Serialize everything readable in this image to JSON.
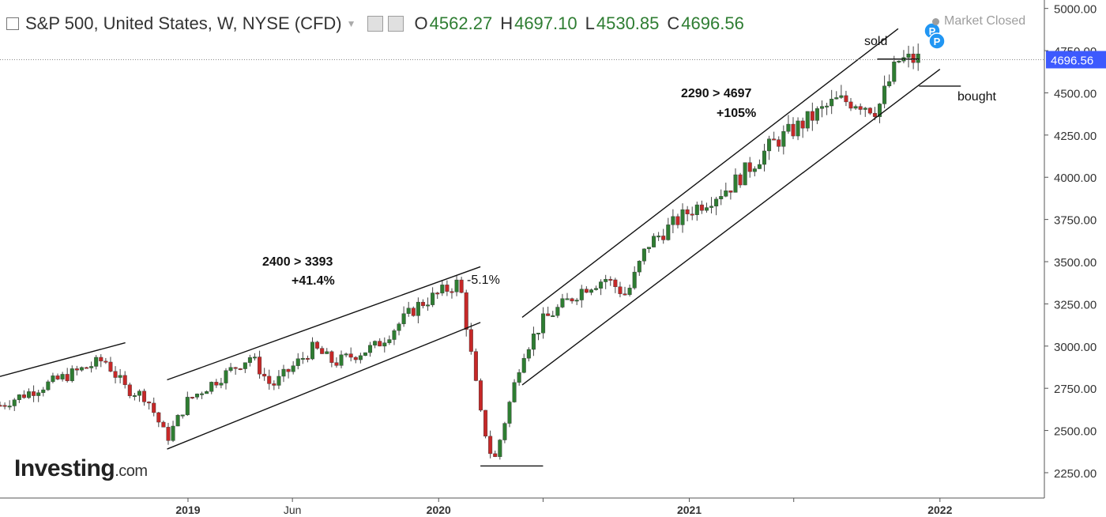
{
  "header": {
    "title": "S&P 500, United States, W, NYSE (CFD)",
    "open_label": "O",
    "open_value": "4562.27",
    "high_label": "H",
    "high_value": "4697.10",
    "low_label": "L",
    "low_value": "4530.85",
    "close_label": "C",
    "close_value": "4696.56",
    "status": "Market Closed"
  },
  "logo": {
    "main": "Investing",
    "suffix": ".com"
  },
  "colors": {
    "up": "#2e7d32",
    "down": "#c62828",
    "price_tag": "#3d5afe",
    "marker": "#2196f3"
  },
  "chart_data": {
    "type": "candlestick",
    "ylim": [
      2100,
      5050
    ],
    "y_ticks": [
      "2250.00",
      "2500.00",
      "2750.00",
      "3000.00",
      "3250.00",
      "3500.00",
      "3750.00",
      "4000.00",
      "4250.00",
      "4500.00",
      "4750.00",
      "5000.00"
    ],
    "x_range": [
      "2018-04",
      "2022-06"
    ],
    "x_ticks": [
      {
        "label": "2019",
        "date": "2019-01"
      },
      {
        "label": "Jun",
        "date": "2019-06"
      },
      {
        "label": "2020",
        "date": "2020-01"
      },
      {
        "label": "",
        "date": "2020-06"
      },
      {
        "label": "2021",
        "date": "2021-01"
      },
      {
        "label": "",
        "date": "2021-06"
      },
      {
        "label": "2022",
        "date": "2022-01"
      }
    ],
    "last_price": "4696.56",
    "anchors": [
      [
        "2018-04",
        2650
      ],
      [
        "2018-06",
        2760
      ],
      [
        "2018-09",
        2920
      ],
      [
        "2018-10",
        2750
      ],
      [
        "2018-11",
        2700
      ],
      [
        "2018-12",
        2450
      ],
      [
        "2019-01",
        2680
      ],
      [
        "2019-04",
        2940
      ],
      [
        "2019-05",
        2760
      ],
      [
        "2019-07",
        2990
      ],
      [
        "2019-08",
        2900
      ],
      [
        "2019-10",
        3000
      ],
      [
        "2019-12",
        3240
      ],
      [
        "2020-02",
        3380
      ],
      [
        "2020-03",
        2600
      ],
      [
        "2020-03-20",
        2300
      ],
      [
        "2020-05",
        2950
      ],
      [
        "2020-06",
        3150
      ],
      [
        "2020-08",
        3350
      ],
      [
        "2020-09",
        3400
      ],
      [
        "2020-10",
        3300
      ],
      [
        "2020-11",
        3600
      ],
      [
        "2021-01",
        3800
      ],
      [
        "2021-03",
        3950
      ],
      [
        "2021-05",
        4200
      ],
      [
        "2021-08",
        4450
      ],
      [
        "2021-09",
        4450
      ],
      [
        "2021-10",
        4400
      ],
      [
        "2021-11",
        4690
      ],
      [
        "2021-12",
        4700
      ]
    ],
    "annotations": [
      {
        "text": "2400 > 3393",
        "bold": true
      },
      {
        "text": "+41.4%",
        "bold": true
      },
      {
        "text": "-5.1%",
        "bold": false
      },
      {
        "text": "2290 > 4697",
        "bold": true
      },
      {
        "text": "+105%",
        "bold": true
      },
      {
        "text": "sold",
        "bold": false
      },
      {
        "text": "bought",
        "bold": false
      }
    ],
    "markers": [
      "P",
      "P"
    ],
    "trend_lines": [
      {
        "from": [
          "2018-04",
          2820
        ],
        "to": [
          "2018-10",
          3020
        ]
      },
      {
        "from": [
          "2018-12",
          2800
        ],
        "to": [
          "2020-03",
          3470
        ]
      },
      {
        "from": [
          "2018-12",
          2390
        ],
        "to": [
          "2020-03",
          3140
        ]
      },
      {
        "from": [
          "2020-05",
          3170
        ],
        "to": [
          "2021-11",
          4880
        ]
      },
      {
        "from": [
          "2020-05",
          2770
        ],
        "to": [
          "2022-01",
          4640
        ]
      }
    ],
    "levels": [
      {
        "from": "2020-03",
        "to": "2020-06",
        "value": 2290
      },
      {
        "from": "2021-10",
        "to": "2021-12",
        "value": 4700
      },
      {
        "from": "2021-12",
        "to": "2022-02",
        "value": 4540
      }
    ]
  }
}
